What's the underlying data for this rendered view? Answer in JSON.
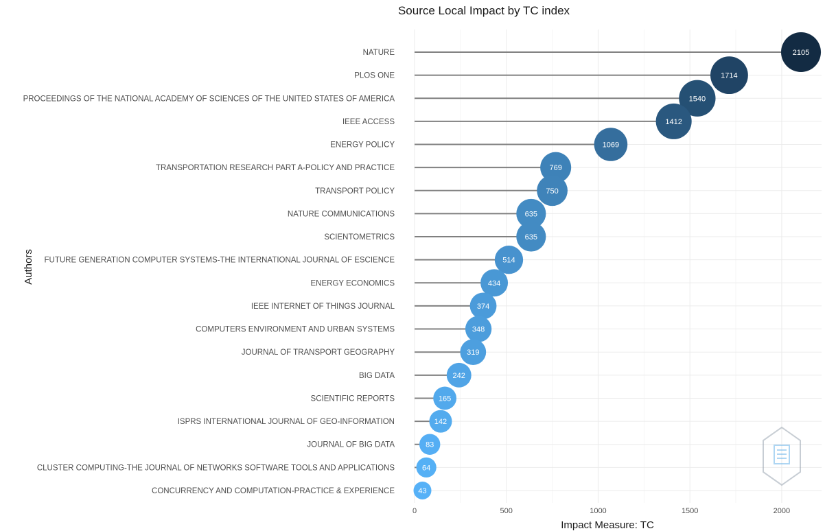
{
  "chart_data": {
    "type": "scatter",
    "title": "Source Local Impact by TC index",
    "xlabel": "Impact Measure: TC",
    "ylabel": "Authors",
    "xlim": [
      0,
      2105
    ],
    "xticks": [
      0,
      500,
      1000,
      1500,
      2000
    ],
    "grid": true,
    "legend": "none",
    "colors": {
      "low": "#56B1F7",
      "high": "#132B43",
      "stem": "#808080",
      "grid": "#ebebeb"
    },
    "categories": [
      "NATURE",
      "PLOS ONE",
      "PROCEEDINGS OF THE NATIONAL ACADEMY OF SCIENCES OF THE UNITED STATES OF AMERICA",
      "IEEE ACCESS",
      "ENERGY POLICY",
      "TRANSPORTATION RESEARCH PART A-POLICY AND PRACTICE",
      "TRANSPORT POLICY",
      "NATURE COMMUNICATIONS",
      "SCIENTOMETRICS",
      "FUTURE GENERATION COMPUTER SYSTEMS-THE INTERNATIONAL JOURNAL OF ESCIENCE",
      "ENERGY ECONOMICS",
      "IEEE INTERNET OF THINGS JOURNAL",
      "COMPUTERS ENVIRONMENT AND URBAN SYSTEMS",
      "JOURNAL OF TRANSPORT GEOGRAPHY",
      "BIG DATA",
      "SCIENTIFIC REPORTS",
      "ISPRS INTERNATIONAL JOURNAL OF GEO-INFORMATION",
      "JOURNAL OF BIG DATA",
      "CLUSTER COMPUTING-THE JOURNAL OF NETWORKS SOFTWARE TOOLS AND APPLICATIONS",
      "CONCURRENCY AND COMPUTATION-PRACTICE & EXPERIENCE"
    ],
    "values": [
      2105,
      1714,
      1540,
      1412,
      1069,
      769,
      750,
      635,
      635,
      514,
      434,
      374,
      348,
      319,
      242,
      165,
      142,
      83,
      64,
      43
    ]
  }
}
